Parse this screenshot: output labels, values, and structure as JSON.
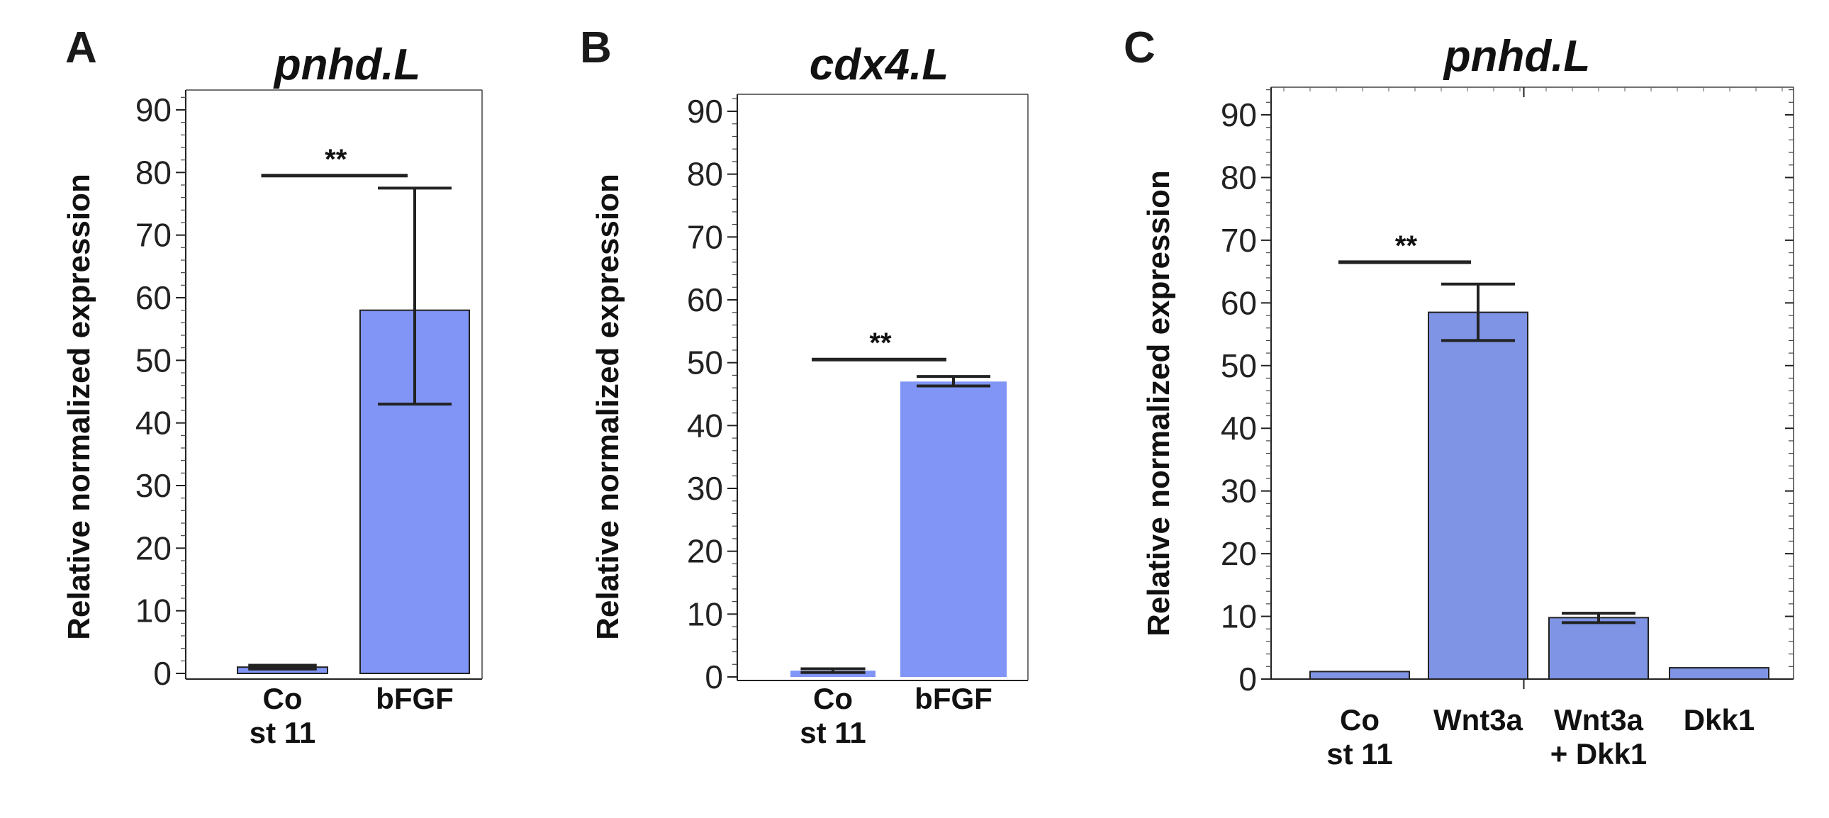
{
  "chart_data": [
    {
      "panel": "A",
      "type": "bar",
      "title": "pnhd.L",
      "ylabel": "Relative normalized expression",
      "xlabel": "",
      "ylim": [
        0,
        93
      ],
      "yticks": [
        "0",
        "10",
        "20",
        "30",
        "40",
        "50",
        "60",
        "70",
        "80",
        "90"
      ],
      "categories": [
        [
          "Co",
          "st 11"
        ],
        [
          "bFGF"
        ]
      ],
      "values": [
        1,
        58
      ],
      "error_low": [
        0.7,
        43
      ],
      "error_high": [
        1.3,
        77.5
      ],
      "significance": [
        {
          "from": 0,
          "to": 1,
          "label": "**",
          "y": 79.5
        }
      ],
      "bar_color": "#8095f5",
      "bar_outline": "#222222"
    },
    {
      "panel": "B",
      "type": "bar",
      "title": "cdx4.L",
      "ylabel": "Relative normalized expression",
      "xlabel": "",
      "ylim": [
        0,
        93
      ],
      "yticks": [
        "0",
        "10",
        "20",
        "30",
        "40",
        "50",
        "60",
        "70",
        "80",
        "90"
      ],
      "categories": [
        [
          "Co",
          "st 11"
        ],
        [
          "bFGF"
        ]
      ],
      "values": [
        1,
        47
      ],
      "error_low": [
        0.7,
        46.3
      ],
      "error_high": [
        1.3,
        47.8
      ],
      "significance": [
        {
          "from": 0,
          "to": 1,
          "label": "**",
          "y": 50.5
        }
      ],
      "bar_color": "#8095f5",
      "bar_outline": "none"
    },
    {
      "panel": "C",
      "type": "bar",
      "title": "pnhd.L",
      "ylabel": "Relative normalized expression",
      "xlabel": "",
      "ylim": [
        0,
        96
      ],
      "yticks": [
        "0",
        "10",
        "20",
        "30",
        "40",
        "50",
        "60",
        "70",
        "80",
        "90"
      ],
      "categories": [
        [
          "Co",
          "st 11"
        ],
        [
          "Wnt3a"
        ],
        [
          "Wnt3a",
          "+ Dkk1"
        ],
        [
          "Dkk1"
        ]
      ],
      "values": [
        1.2,
        58.5,
        9.8,
        1.8
      ],
      "error_low": [
        1.2,
        54,
        9,
        1.8
      ],
      "error_high": [
        1.2,
        63,
        10.5,
        1.8
      ],
      "significance": [
        {
          "from": 0,
          "to": 1,
          "label": "**",
          "y": 66.5
        }
      ],
      "bar_color": "#7f94e4",
      "bar_outline": "#222222"
    }
  ]
}
